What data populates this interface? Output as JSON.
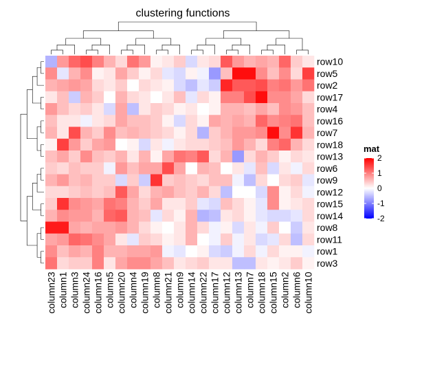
{
  "chart_data": {
    "type": "heatmap",
    "title": "clustering functions",
    "rows": [
      "row10",
      "row5",
      "row2",
      "row17",
      "row4",
      "row16",
      "row7",
      "row18",
      "row13",
      "row6",
      "row9",
      "row12",
      "row15",
      "row14",
      "row8",
      "row11",
      "row1",
      "row3"
    ],
    "columns": [
      "column23",
      "column1",
      "column3",
      "column24",
      "column16",
      "column5",
      "column20",
      "column4",
      "column19",
      "column8",
      "column21",
      "column9",
      "column14",
      "column22",
      "column17",
      "column12",
      "column13",
      "column7",
      "column18",
      "column15",
      "column2",
      "column6",
      "column10"
    ],
    "values": [
      [
        -0.6,
        0.8,
        1.2,
        1.4,
        1.0,
        0.6,
        0.3,
        1.1,
        0.8,
        0.1,
        0.2,
        0.4,
        -0.3,
        0.2,
        0.3,
        1.3,
        0.8,
        0.6,
        0.7,
        0.6,
        1.2,
        0.4,
        0.2
      ],
      [
        0.9,
        -0.2,
        0.6,
        0.9,
        0.1,
        0.2,
        0.7,
        0.4,
        0.1,
        0.3,
        -0.2,
        -0.3,
        0.1,
        -0.1,
        -0.8,
        0.5,
        1.9,
        1.9,
        0.9,
        0.5,
        0.9,
        0.3,
        1.5
      ],
      [
        0.6,
        0.7,
        0.8,
        0.7,
        0.3,
        0.2,
        0.4,
        0.0,
        0.3,
        0.2,
        0.1,
        -0.3,
        -0.5,
        -0.2,
        -0.4,
        1.7,
        1.3,
        1.3,
        1.4,
        1.0,
        1.1,
        0.8,
        1.1
      ],
      [
        0.2,
        0.5,
        -0.4,
        0.6,
        0.4,
        0.0,
        0.6,
        0.3,
        0.2,
        0.0,
        0.2,
        0.5,
        -0.2,
        0.3,
        0.1,
        1.0,
        1.0,
        1.4,
        1.9,
        0.9,
        0.9,
        0.7,
        0.3
      ],
      [
        0.8,
        0.5,
        0.3,
        0.4,
        0.2,
        -0.3,
        0.7,
        -0.5,
        0.2,
        0.4,
        0.3,
        0.1,
        0.2,
        0.0,
        0.1,
        0.6,
        0.6,
        0.5,
        0.7,
        0.5,
        0.9,
        0.8,
        0.5
      ],
      [
        0.5,
        0.2,
        0.2,
        -0.1,
        0.2,
        0.3,
        0.7,
        0.5,
        0.5,
        0.4,
        0.1,
        -0.3,
        0.3,
        0.1,
        0.7,
        0.6,
        0.7,
        0.6,
        1.2,
        0.9,
        1.0,
        1.1,
        0.5
      ],
      [
        0.6,
        0.2,
        1.4,
        0.6,
        0.4,
        0.9,
        0.5,
        0.6,
        0.5,
        0.4,
        0.3,
        0.1,
        0.3,
        -0.6,
        0.4,
        0.6,
        0.8,
        0.8,
        0.9,
        1.9,
        0.9,
        1.6,
        0.6
      ],
      [
        0.1,
        1.5,
        0.8,
        0.4,
        0.7,
        0.8,
        0.0,
        0.1,
        -0.3,
        0.2,
        -0.1,
        0.2,
        0.3,
        0.3,
        0.4,
        0.5,
        0.8,
        0.6,
        0.3,
        1.0,
        1.2,
        0.6,
        0.3
      ],
      [
        0.5,
        0.7,
        0.4,
        0.9,
        0.5,
        0.4,
        0.6,
        0.2,
        0.6,
        0.1,
        0.7,
        1.1,
        1.0,
        1.3,
        0.3,
        0.6,
        -0.8,
        0.3,
        0.6,
        0.4,
        0.1,
        0.3,
        0.2
      ],
      [
        0.4,
        0.3,
        0.5,
        0.4,
        0.4,
        -0.1,
        0.8,
        0.5,
        0.7,
        0.7,
        1.4,
        0.7,
        0.0,
        0.6,
        0.5,
        0.0,
        0.2,
        -0.2,
        0.5,
        -0.3,
        0.2,
        -0.1,
        0.3
      ],
      [
        0.6,
        0.8,
        0.5,
        0.6,
        0.4,
        0.4,
        -0.3,
        0.4,
        -0.4,
        1.6,
        0.4,
        0.5,
        0.4,
        0.3,
        0.5,
        0.5,
        -0.1,
        -0.5,
        0.3,
        0.0,
        0.3,
        0.4,
        -0.2
      ],
      [
        0.3,
        0.3,
        0.4,
        0.5,
        0.4,
        0.5,
        1.3,
        0.7,
        0.3,
        0.6,
        0.7,
        0.5,
        0.4,
        0.6,
        0.3,
        -0.5,
        0.0,
        0.0,
        -0.3,
        0.9,
        0.1,
        0.3,
        -0.1
      ],
      [
        0.4,
        1.6,
        0.9,
        0.8,
        0.7,
        1.1,
        1.0,
        0.6,
        0.4,
        0.7,
        0.2,
        0.2,
        0.4,
        -0.2,
        -0.3,
        0.5,
        0.3,
        0.1,
        -0.2,
        0.9,
        0.1,
        0.2,
        0.3
      ],
      [
        0.6,
        0.9,
        0.8,
        0.8,
        0.6,
        1.2,
        1.3,
        0.6,
        0.5,
        -0.2,
        0.3,
        0.1,
        0.6,
        -0.6,
        -0.5,
        0.2,
        0.3,
        0.1,
        -0.2,
        -0.3,
        -0.3,
        -0.2,
        0.3
      ],
      [
        1.8,
        1.8,
        0.7,
        0.6,
        0.7,
        0.7,
        0.8,
        0.6,
        0.3,
        0.1,
        0.0,
        0.2,
        0.6,
        0.3,
        -0.1,
        0.1,
        -0.3,
        0.2,
        -0.1,
        0.4,
        0.0,
        -0.4,
        0.2
      ],
      [
        0.7,
        0.8,
        1.2,
        1.1,
        0.9,
        0.7,
        0.2,
        -0.2,
        0.4,
        0.3,
        0.1,
        0.2,
        0.6,
        0.0,
        -0.1,
        0.4,
        -0.1,
        0.2,
        -0.3,
        -0.2,
        0.3,
        -0.5,
        0.3
      ],
      [
        0.9,
        0.5,
        0.7,
        0.6,
        1.0,
        0.6,
        0.6,
        0.7,
        0.7,
        0.8,
        -0.1,
        -0.2,
        0.0,
        0.1,
        -0.3,
        -0.4,
        -0.1,
        0.3,
        -0.1,
        0.3,
        0.1,
        0.1,
        -0.1
      ],
      [
        1.1,
        0.3,
        0.4,
        0.4,
        1.0,
        0.2,
        0.7,
        0.9,
        0.9,
        0.7,
        0.5,
        0.2,
        0.3,
        0.4,
        0.2,
        0.2,
        -0.5,
        -0.5,
        0.2,
        0.1,
        0.2,
        0.4,
        0.1
      ]
    ],
    "color_scale": {
      "low": -2,
      "mid": 0,
      "high": 2,
      "low_color": "#0000ff",
      "mid_color": "#ffffff",
      "high_color": "#ff0000"
    },
    "legend": {
      "title": "mat",
      "ticks": [
        2,
        1,
        0,
        -1,
        -2
      ],
      "position": "right"
    }
  }
}
